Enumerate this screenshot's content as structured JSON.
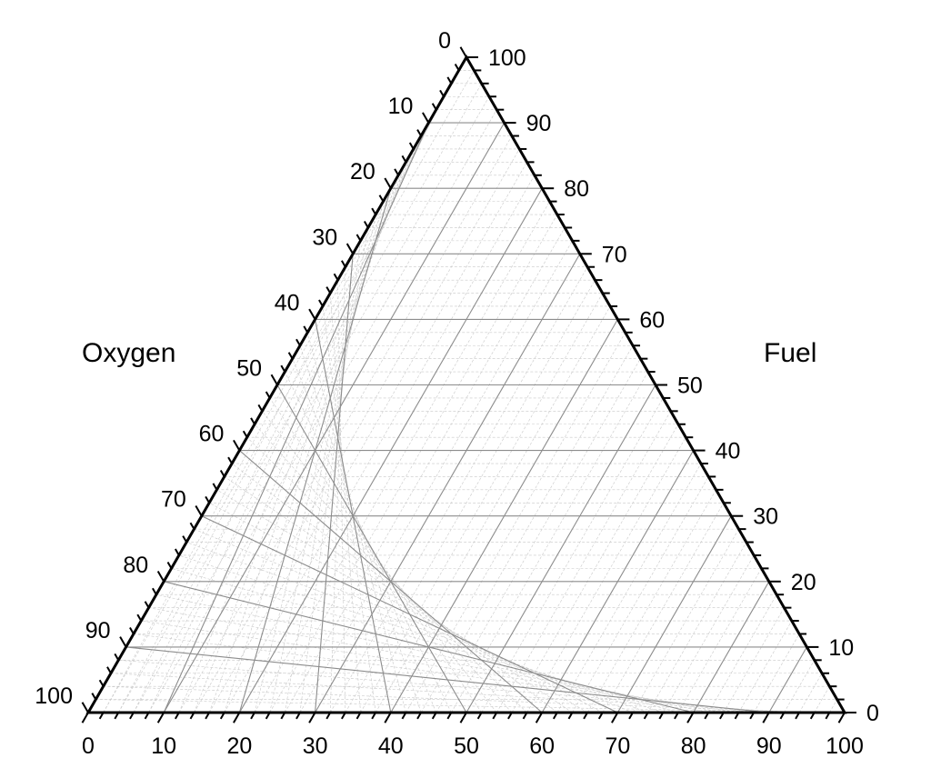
{
  "chart_data": {
    "type": "ternary",
    "title": "",
    "axes": {
      "left": {
        "label": "Oxygen",
        "range": [
          0,
          100
        ],
        "ticks": [
          "0",
          "10",
          "20",
          "30",
          "40",
          "50",
          "60",
          "70",
          "80",
          "90",
          "100"
        ]
      },
      "right": {
        "label": "Fuel",
        "range": [
          0,
          100
        ],
        "ticks": [
          "0",
          "10",
          "20",
          "30",
          "40",
          "50",
          "60",
          "70",
          "80",
          "90",
          "100"
        ]
      },
      "bottom": {
        "label": "",
        "range": [
          0,
          100
        ],
        "ticks": [
          "0",
          "10",
          "20",
          "30",
          "40",
          "50",
          "60",
          "70",
          "80",
          "90",
          "100"
        ]
      }
    },
    "major_grid_step": 10,
    "minor_grid_step": 2,
    "grid": true,
    "series": []
  },
  "colors": {
    "axis": "#000000",
    "major_grid": "#8c8c8c",
    "minor_grid": "#c8c8c8"
  }
}
